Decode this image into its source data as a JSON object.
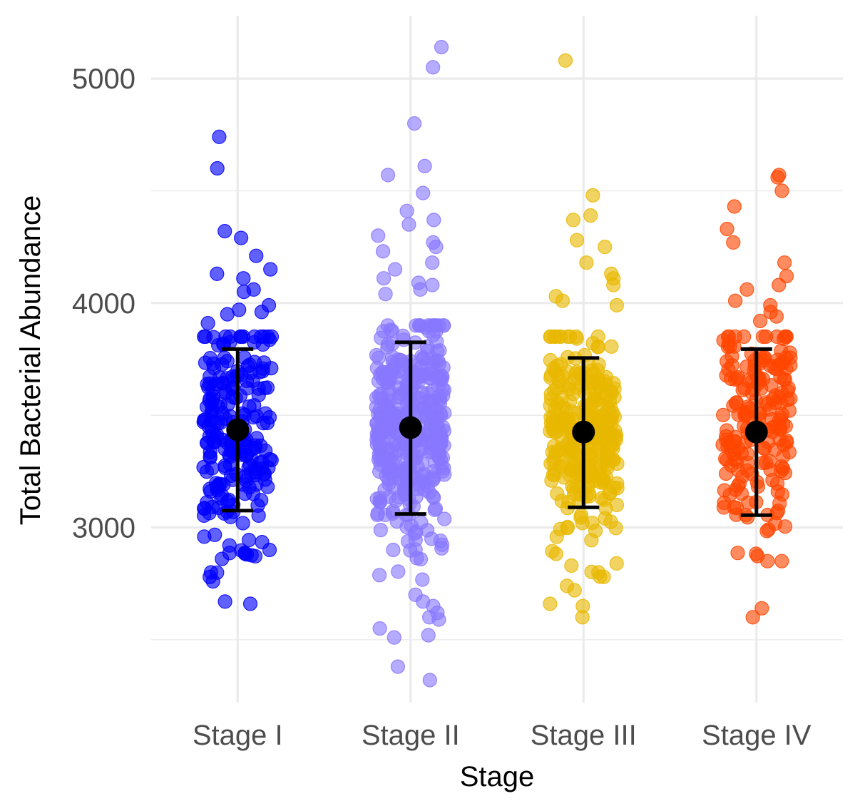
{
  "chart_data": {
    "type": "scatter",
    "subtype": "jittered strip plot with mean and error bars",
    "title": "",
    "xlabel": "Stage",
    "ylabel": "Total Bacterial Abundance",
    "categories": [
      "Stage I",
      "Stage II",
      "Stage III",
      "Stage IV"
    ],
    "ylim": [
      2220,
      5280
    ],
    "y_ticks": [
      3000,
      4000,
      5000
    ],
    "y_tick_labels": [
      "3000",
      "4000",
      "5000"
    ],
    "y_minor_ticks": [
      2500,
      3500,
      4500
    ],
    "grid": true,
    "legend": "none",
    "summary": [
      {
        "category": "Stage I",
        "mean": 3435,
        "lower": 3075,
        "upper": 3795
      },
      {
        "category": "Stage II",
        "mean": 3445,
        "lower": 3060,
        "upper": 3825
      },
      {
        "category": "Stage III",
        "mean": 3425,
        "lower": 3090,
        "upper": 3755
      },
      {
        "category": "Stage IV",
        "mean": 3425,
        "lower": 3055,
        "upper": 3795
      }
    ],
    "series": [
      {
        "category": "Stage I",
        "color": "#0000FF",
        "n": 220,
        "seed": 11,
        "center": 3435,
        "spread": 250,
        "min": 2650,
        "max": 3850,
        "outliers": [
          4740,
          4600,
          4320,
          4290,
          4210,
          4150,
          4130,
          4110,
          4060,
          4050,
          3990,
          3970,
          3960,
          3950,
          3910,
          2900,
          2880,
          2800,
          2780,
          2760,
          2670,
          2660
        ]
      },
      {
        "category": "Stage II",
        "color": "#8877FF",
        "n": 380,
        "seed": 23,
        "center": 3445,
        "spread": 255,
        "min": 2700,
        "max": 3900,
        "outliers": [
          5140,
          5050,
          4800,
          4610,
          4570,
          4490,
          4410,
          4370,
          4350,
          4300,
          4270,
          4250,
          4230,
          4180,
          4150,
          4110,
          4090,
          4080,
          4060,
          4040,
          2700,
          2670,
          2650,
          2620,
          2600,
          2590,
          2550,
          2520,
          2510,
          2380,
          2320
        ]
      },
      {
        "category": "Stage III",
        "color": "#E8B800",
        "n": 300,
        "seed": 37,
        "center": 3425,
        "spread": 220,
        "min": 2750,
        "max": 3850,
        "outliers": [
          5080,
          4480,
          4390,
          4370,
          4280,
          4250,
          4180,
          4130,
          4110,
          4080,
          4030,
          4010,
          3990,
          2840,
          2830,
          2800,
          2780,
          2740,
          2720,
          2660,
          2650,
          2600
        ]
      },
      {
        "category": "Stage IV",
        "color": "#FF4500",
        "n": 190,
        "seed": 53,
        "center": 3425,
        "spread": 250,
        "min": 2850,
        "max": 3850,
        "outliers": [
          4570,
          4560,
          4500,
          4430,
          4330,
          4270,
          4180,
          4120,
          4080,
          4060,
          4010,
          3990,
          3960,
          3940,
          3920,
          2850,
          2640,
          2600
        ]
      }
    ]
  }
}
